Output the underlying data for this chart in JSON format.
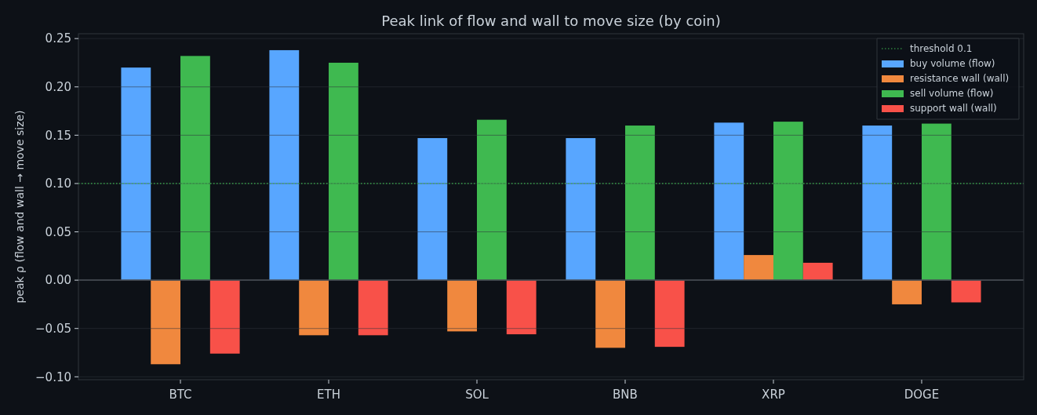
{
  "chart_data": {
    "type": "bar",
    "title": "Peak link of flow and wall to move size (by coin)",
    "ylabel": "peak ρ (flow and wall → move size)",
    "categories": [
      "BTC",
      "ETH",
      "SOL",
      "BNB",
      "XRP",
      "DOGE"
    ],
    "series": [
      {
        "name": "buy volume (flow)",
        "color": "#58a6ff",
        "values": [
          0.22,
          0.238,
          0.147,
          0.147,
          0.163,
          0.16
        ]
      },
      {
        "name": "resistance wall (wall)",
        "color": "#f0883e",
        "values": [
          -0.087,
          -0.057,
          -0.053,
          -0.07,
          0.026,
          -0.025
        ]
      },
      {
        "name": "sell volume (flow)",
        "color": "#3fb950",
        "values": [
          0.232,
          0.225,
          0.166,
          0.16,
          0.164,
          0.162
        ]
      },
      {
        "name": "support wall (wall)",
        "color": "#f85149",
        "values": [
          -0.076,
          -0.057,
          -0.056,
          -0.069,
          0.018,
          -0.023
        ]
      }
    ],
    "ylim": [
      -0.103,
      0.255
    ],
    "yticks": [
      {
        "value": -0.1,
        "label": "−0.10"
      },
      {
        "value": -0.05,
        "label": "−0.05"
      },
      {
        "value": 0,
        "label": "0.00"
      },
      {
        "value": 0.05,
        "label": "0.05"
      },
      {
        "value": 0.1,
        "label": "0.10"
      },
      {
        "value": 0.15,
        "label": "0.15"
      },
      {
        "value": 0.2,
        "label": "0.20"
      },
      {
        "value": 0.25,
        "label": "0.25"
      }
    ],
    "ref_lines": [
      {
        "axis": "y",
        "value": 0.1,
        "label": "threshold 0.1",
        "color": "#3fb950",
        "line_style": "dotted"
      },
      {
        "axis": "y",
        "value": 0,
        "label": null,
        "color": "#4b5058",
        "line_style": "solid"
      }
    ],
    "grid": "y",
    "legend": "top right"
  }
}
